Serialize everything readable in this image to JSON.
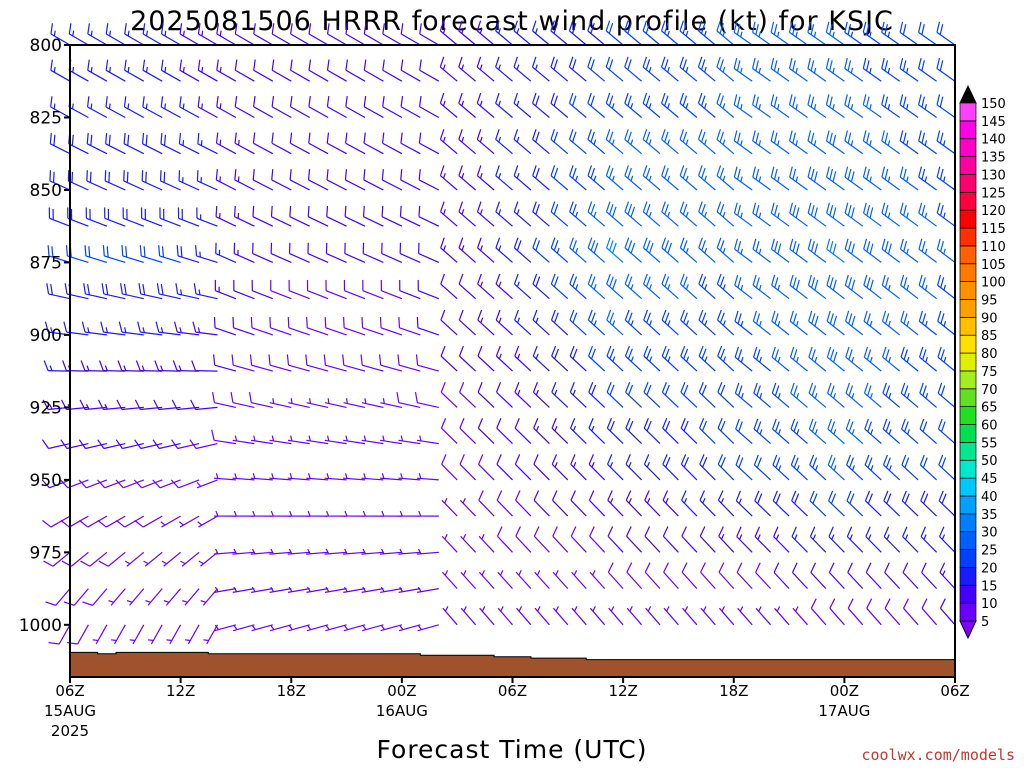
{
  "chart_data": {
    "type": "wind-barb-time-height",
    "title": "2025081506 HRRR forecast wind profile (kt) for KSJC",
    "xlabel": "Forecast Time (UTC)",
    "credit": "coolwx.com/models",
    "y_axis": {
      "label": "",
      "ticks": [
        "800",
        "825",
        "850",
        "875",
        "900",
        "925",
        "950",
        "975",
        "1000"
      ],
      "range": [
        800,
        1018
      ],
      "inverted": true
    },
    "x_axis": {
      "range_hours": [
        0,
        48
      ],
      "ticks": [
        {
          "l1": "06Z",
          "l2": "15AUG",
          "l3": "2025"
        },
        {
          "l1": "12Z",
          "l2": "",
          "l3": ""
        },
        {
          "l1": "18Z",
          "l2": "",
          "l3": ""
        },
        {
          "l1": "00Z",
          "l2": "16AUG",
          "l3": ""
        },
        {
          "l1": "06Z",
          "l2": "",
          "l3": ""
        },
        {
          "l1": "12Z",
          "l2": "",
          "l3": ""
        },
        {
          "l1": "18Z",
          "l2": "",
          "l3": ""
        },
        {
          "l1": "00Z",
          "l2": "17AUG",
          "l3": ""
        },
        {
          "l1": "06Z",
          "l2": "",
          "l3": ""
        }
      ]
    },
    "colorbar": {
      "units": "kt",
      "levels": [
        "5",
        "10",
        "15",
        "20",
        "25",
        "30",
        "35",
        "40",
        "45",
        "50",
        "55",
        "60",
        "65",
        "70",
        "75",
        "80",
        "85",
        "90",
        "95",
        "100",
        "105",
        "110",
        "115",
        "120",
        "125",
        "130",
        "135",
        "140",
        "145",
        "150"
      ],
      "colors": [
        "#8000ff",
        "#6a00ff",
        "#4400ff",
        "#1a1aff",
        "#0040ff",
        "#0060ff",
        "#0080ff",
        "#00a0ff",
        "#00c8ff",
        "#00e8d0",
        "#00e890",
        "#00e050",
        "#20e020",
        "#60e020",
        "#a0f020",
        "#e0f000",
        "#ffe000",
        "#ffc000",
        "#ffa000",
        "#ff9000",
        "#ff7800",
        "#ff6000",
        "#ff3000",
        "#ff0000",
        "#ff0040",
        "#ff0070",
        "#ff00a0",
        "#ff00c8",
        "#ff00e8",
        "#ff40ff"
      ]
    },
    "wind_direction_regime": [
      {
        "hours": [
          0,
          8
        ],
        "surface_deg": 200,
        "aloft_deg": 300
      },
      {
        "hours": [
          8,
          20
        ],
        "surface_deg": 250,
        "aloft_deg": 300
      },
      {
        "hours": [
          20,
          36
        ],
        "surface_deg": 320,
        "aloft_deg": 310
      },
      {
        "hours": [
          36,
          48
        ],
        "surface_deg": 320,
        "aloft_deg": 305
      }
    ],
    "speed_kt": {
      "hours": [
        0,
        6,
        12,
        18,
        24,
        30,
        36,
        42,
        48
      ],
      "at_800": [
        15,
        15,
        10,
        10,
        15,
        20,
        25,
        25,
        20
      ],
      "at_875": [
        20,
        20,
        10,
        10,
        15,
        30,
        25,
        30,
        25
      ],
      "at_950": [
        10,
        8,
        5,
        5,
        10,
        15,
        20,
        25,
        20
      ],
      "at_1000": [
        8,
        5,
        5,
        5,
        5,
        5,
        5,
        8,
        10
      ]
    },
    "surface_pressure_hpa": {
      "hours": [
        0,
        1.5,
        2.5,
        7.5,
        19,
        23,
        25,
        28,
        48
      ],
      "values": [
        1009.5,
        1010,
        1009.5,
        1010,
        1010.5,
        1011,
        1011.5,
        1012,
        1012.5
      ]
    },
    "colors": {
      "terrain": "#a0522d",
      "frame": "#000000",
      "credit": "#c0392b"
    }
  }
}
